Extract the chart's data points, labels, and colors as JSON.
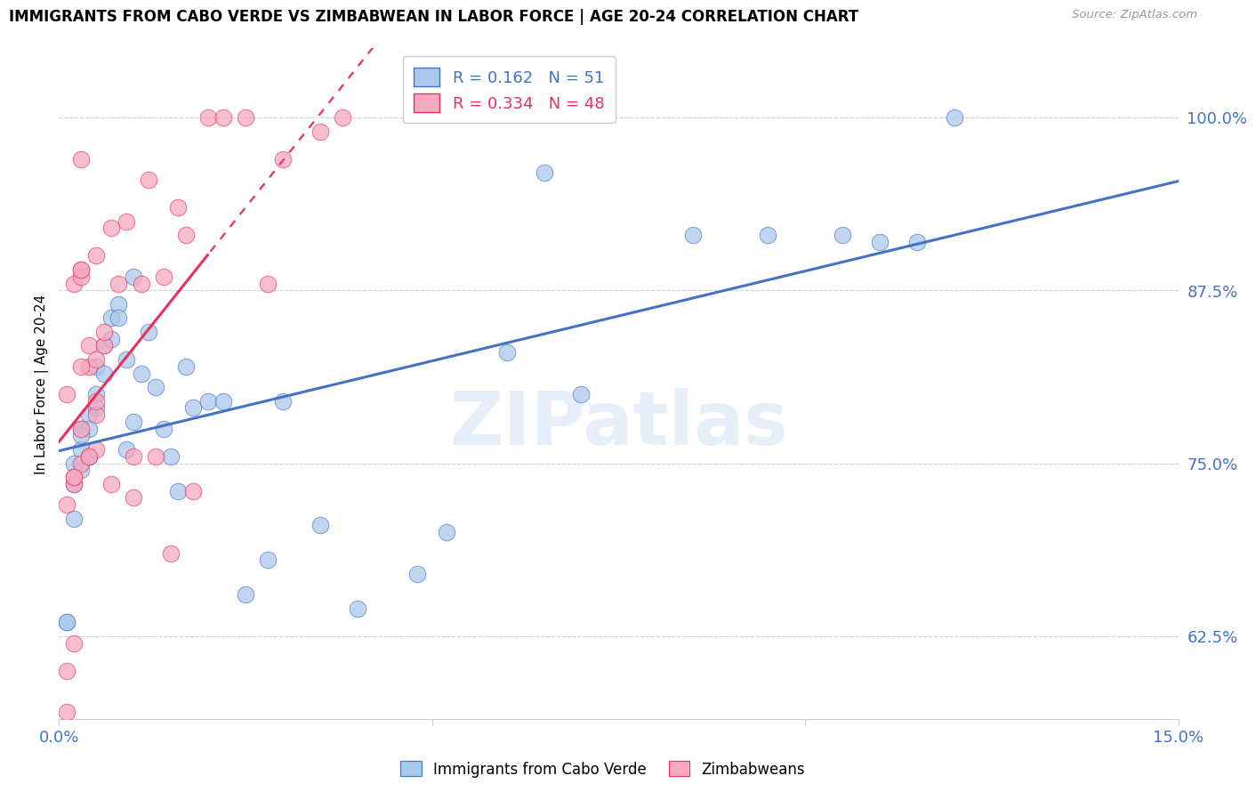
{
  "title": "IMMIGRANTS FROM CABO VERDE VS ZIMBABWEAN IN LABOR FORCE | AGE 20-24 CORRELATION CHART",
  "source": "Source: ZipAtlas.com",
  "ylabel": "In Labor Force | Age 20-24",
  "y_tick_labels": [
    "62.5%",
    "75.0%",
    "87.5%",
    "100.0%"
  ],
  "y_tick_values": [
    0.625,
    0.75,
    0.875,
    1.0
  ],
  "x_min": 0.0,
  "x_max": 0.15,
  "y_min": 0.565,
  "y_max": 1.05,
  "cabo_verde_color": "#aac8ec",
  "zimbabwe_color": "#f5a8c0",
  "cabo_verde_line_color": "#4472c4",
  "zimbabwe_line_color": "#e8305a",
  "cabo_verde_R": 0.162,
  "cabo_verde_N": 51,
  "zimbabwe_R": 0.334,
  "zimbabwe_N": 48,
  "watermark": "ZIPatlas",
  "cabo_verde_x": [
    0.001,
    0.001,
    0.002,
    0.002,
    0.003,
    0.003,
    0.003,
    0.004,
    0.004,
    0.005,
    0.005,
    0.005,
    0.006,
    0.006,
    0.007,
    0.007,
    0.008,
    0.008,
    0.009,
    0.009,
    0.01,
    0.01,
    0.011,
    0.012,
    0.013,
    0.014,
    0.015,
    0.016,
    0.017,
    0.018,
    0.02,
    0.022,
    0.025,
    0.028,
    0.03,
    0.035,
    0.04,
    0.048,
    0.052,
    0.06,
    0.065,
    0.07,
    0.085,
    0.095,
    0.105,
    0.11,
    0.115,
    0.12,
    0.002,
    0.003,
    0.004
  ],
  "cabo_verde_y": [
    0.635,
    0.635,
    0.735,
    0.71,
    0.775,
    0.76,
    0.745,
    0.785,
    0.775,
    0.82,
    0.8,
    0.79,
    0.835,
    0.815,
    0.855,
    0.84,
    0.865,
    0.855,
    0.825,
    0.76,
    0.885,
    0.78,
    0.815,
    0.845,
    0.805,
    0.775,
    0.755,
    0.73,
    0.82,
    0.79,
    0.795,
    0.795,
    0.655,
    0.68,
    0.795,
    0.705,
    0.645,
    0.67,
    0.7,
    0.83,
    0.96,
    0.8,
    0.915,
    0.915,
    0.915,
    0.91,
    0.91,
    1.0,
    0.75,
    0.77,
    0.755
  ],
  "zimbabwe_x": [
    0.001,
    0.001,
    0.001,
    0.001,
    0.002,
    0.002,
    0.002,
    0.002,
    0.003,
    0.003,
    0.003,
    0.003,
    0.003,
    0.003,
    0.004,
    0.004,
    0.004,
    0.005,
    0.005,
    0.005,
    0.005,
    0.005,
    0.006,
    0.006,
    0.007,
    0.007,
    0.008,
    0.009,
    0.01,
    0.01,
    0.011,
    0.012,
    0.013,
    0.014,
    0.015,
    0.016,
    0.017,
    0.018,
    0.02,
    0.022,
    0.025,
    0.028,
    0.03,
    0.035,
    0.038,
    0.002,
    0.003,
    0.004
  ],
  "zimbabwe_y": [
    0.57,
    0.6,
    0.72,
    0.8,
    0.62,
    0.735,
    0.74,
    0.88,
    0.75,
    0.775,
    0.885,
    0.89,
    0.97,
    0.89,
    0.755,
    0.82,
    0.835,
    0.76,
    0.785,
    0.795,
    0.825,
    0.9,
    0.835,
    0.845,
    0.735,
    0.92,
    0.88,
    0.925,
    0.725,
    0.755,
    0.88,
    0.955,
    0.755,
    0.885,
    0.685,
    0.935,
    0.915,
    0.73,
    1.0,
    1.0,
    1.0,
    0.88,
    0.97,
    0.99,
    1.0,
    0.74,
    0.82,
    0.755
  ],
  "zimb_line_solid_end": 0.02,
  "cabo_line_color_r": "#4472c4",
  "zimb_line_color_r": "#e8305a"
}
